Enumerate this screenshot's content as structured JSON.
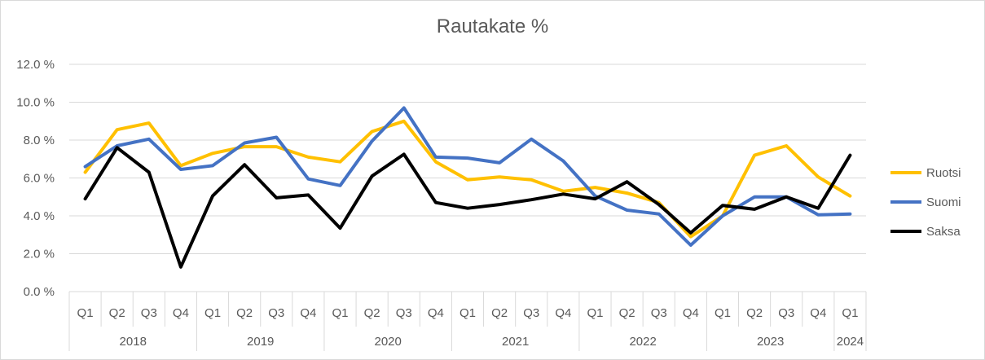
{
  "chart_data": {
    "type": "line",
    "title": "Rautakate %",
    "xlabel": "",
    "ylabel": "",
    "ylim": [
      0,
      12
    ],
    "yticks": [
      0,
      2,
      4,
      6,
      8,
      10,
      12
    ],
    "ytick_labels": [
      "0.0 %",
      "2.0 %",
      "4.0 %",
      "6.0 %",
      "8.0 %",
      "10.0 %",
      "12.0 %"
    ],
    "grid": true,
    "legend_position": "right",
    "categories": [
      "Q1",
      "Q2",
      "Q3",
      "Q4",
      "Q1",
      "Q2",
      "Q3",
      "Q4",
      "Q1",
      "Q2",
      "Q3",
      "Q4",
      "Q1",
      "Q2",
      "Q3",
      "Q4",
      "Q1",
      "Q2",
      "Q3",
      "Q4",
      "Q1",
      "Q2",
      "Q3",
      "Q4",
      "Q1"
    ],
    "years": [
      {
        "label": "2018",
        "count": 4
      },
      {
        "label": "2019",
        "count": 4
      },
      {
        "label": "2020",
        "count": 4
      },
      {
        "label": "2021",
        "count": 4
      },
      {
        "label": "2022",
        "count": 4
      },
      {
        "label": "2023",
        "count": 4
      },
      {
        "label": "2024",
        "count": 1
      }
    ],
    "series": [
      {
        "name": "Ruotsi",
        "color": "#FFC000",
        "values": [
          6.3,
          8.55,
          8.9,
          6.65,
          7.3,
          7.65,
          7.65,
          7.1,
          6.85,
          8.45,
          9.0,
          6.85,
          5.9,
          6.05,
          5.9,
          5.3,
          5.5,
          5.2,
          4.7,
          2.9,
          4.0,
          7.2,
          7.7,
          6.05,
          5.05
        ]
      },
      {
        "name": "Suomi",
        "color": "#4472C4",
        "values": [
          6.6,
          7.7,
          8.05,
          6.45,
          6.65,
          7.85,
          8.15,
          5.95,
          5.6,
          7.95,
          9.7,
          7.1,
          7.05,
          6.8,
          8.05,
          6.9,
          5.05,
          4.3,
          4.1,
          2.45,
          4.0,
          5.0,
          5.0,
          4.05,
          4.1
        ]
      },
      {
        "name": "Saksa",
        "color": "#000000",
        "values": [
          4.9,
          7.6,
          6.3,
          1.3,
          5.05,
          6.7,
          4.95,
          5.1,
          3.35,
          6.1,
          7.25,
          4.7,
          4.4,
          4.6,
          4.85,
          5.15,
          4.9,
          5.8,
          4.6,
          3.1,
          4.55,
          4.35,
          5.0,
          4.4,
          7.2
        ]
      }
    ]
  }
}
